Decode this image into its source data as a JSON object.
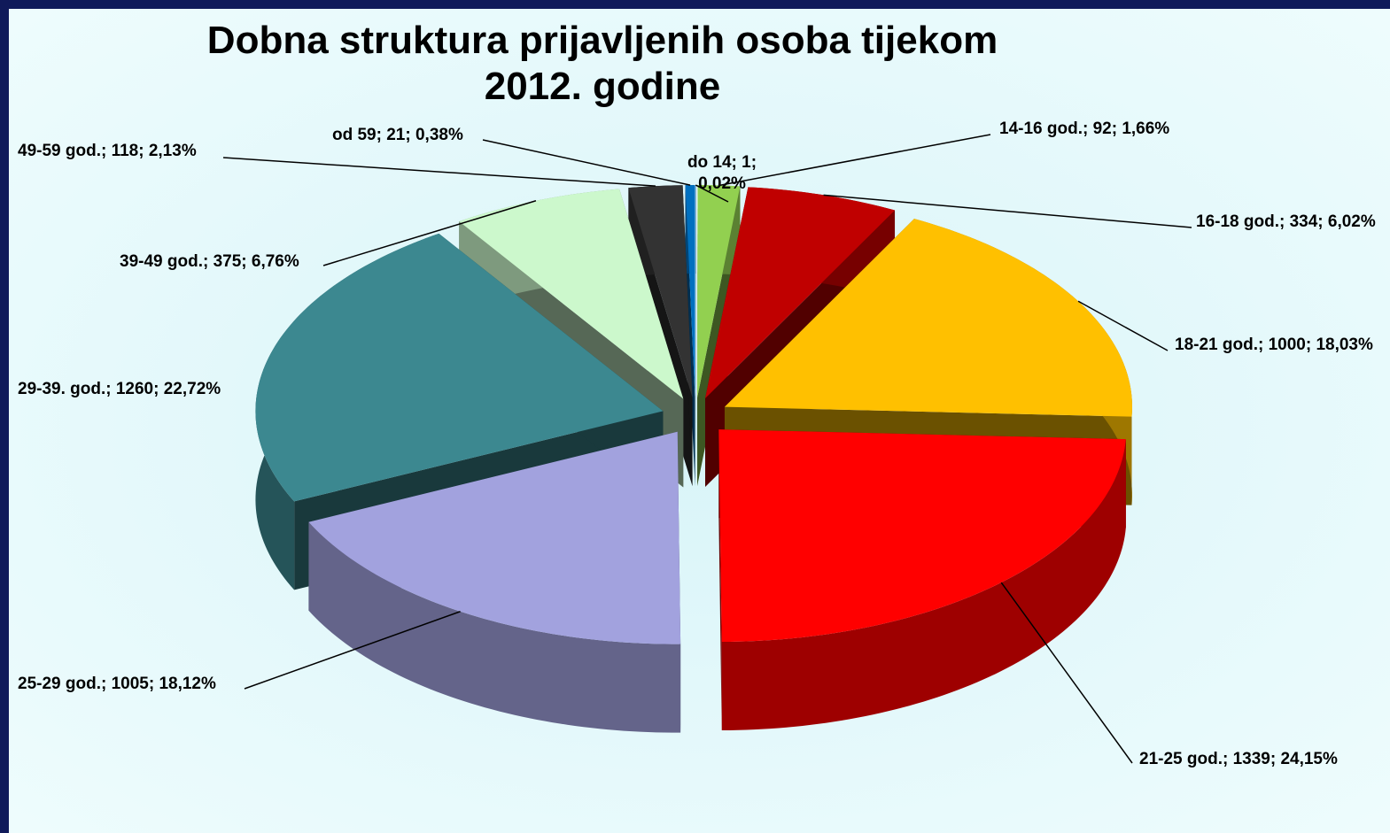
{
  "chart_data": {
    "type": "pie",
    "title": "Dobna struktura prijavljenih osoba tijekom 2012. godine",
    "labels": [
      "do 14; 1; 0,02%",
      "14-16 god.; 92; 1,66%",
      "16-18 god.; 334; 6,02%",
      "18-21 god.; 1000; 18,03%",
      "21-25 god.; 1339; 24,15%",
      "25-29 god.; 1005; 18,12%",
      "29-39. god.; 1260; 22,72%",
      "39-49 god.; 375; 6,76%",
      "49-59 god.; 118; 2,13%",
      "od 59; 21; 0,38%"
    ],
    "values": [
      1,
      92,
      334,
      1000,
      1339,
      1005,
      1260,
      375,
      118,
      21
    ],
    "colors": [
      "#4f81bd",
      "#92d050",
      "#c00000",
      "#ffc000",
      "#ff0000",
      "#a2a2de",
      "#3c8890",
      "#ccf8cc",
      "#333333",
      "#0070c0"
    ]
  }
}
